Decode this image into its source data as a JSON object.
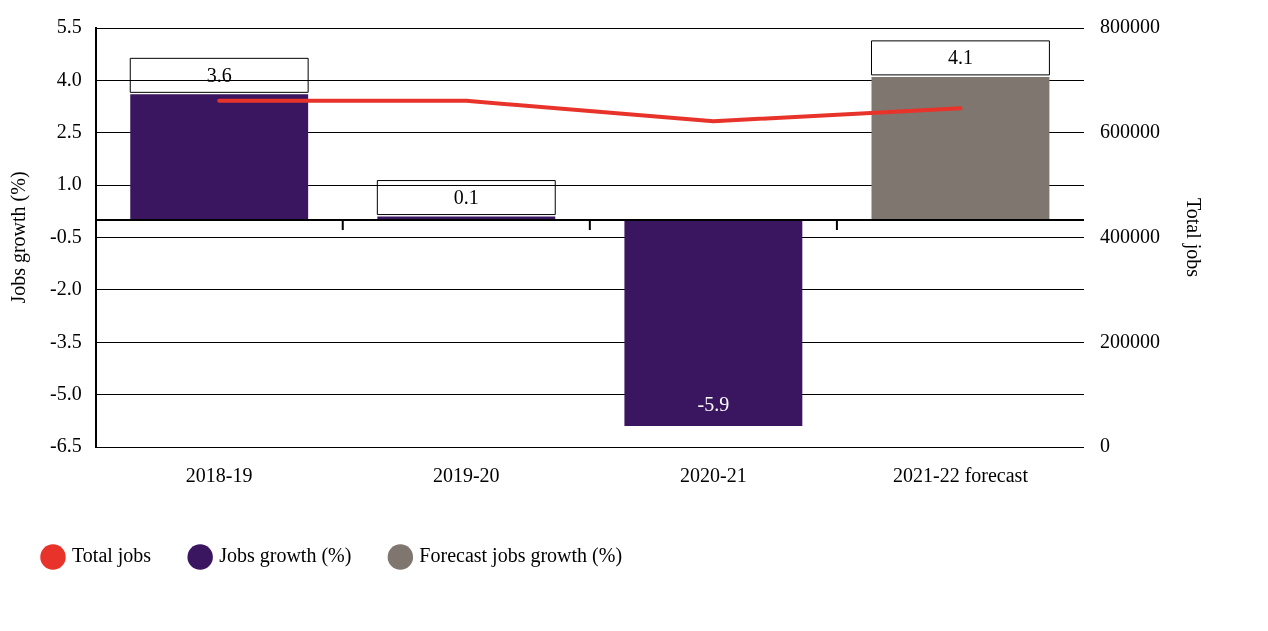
{
  "chart_data": {
    "type": "bar",
    "ylabel": "Jobs growth (%)",
    "y2label": "Total jobs",
    "categories": [
      "2018-19",
      "2019-20",
      "2020-21",
      "2021-22 forecast"
    ],
    "series": [
      {
        "name": "Total jobs",
        "type": "line",
        "axis": "y2",
        "color": "#e8332a",
        "values": [
          661000,
          661000,
          622000,
          647000
        ]
      },
      {
        "name": "Jobs growth (%)",
        "color": "#3b1660",
        "values": [
          3.6,
          0.1,
          -5.9,
          null
        ],
        "value_labels": [
          "3.6",
          "0.1",
          "-5.9",
          null
        ]
      },
      {
        "name": "Forecast jobs growth (%)",
        "color": "#7f7670",
        "values": [
          null,
          null,
          null,
          4.1
        ],
        "value_labels": [
          null,
          null,
          null,
          "4.1"
        ]
      }
    ],
    "stacked": true,
    "grid": "y",
    "legend": "bottom",
    "marker": "none",
    "ylim": [
      -6.5,
      5.5
    ],
    "yticks": [
      {
        "value": -6.5,
        "label": "-6.5"
      },
      {
        "value": -5,
        "label": "-5.0"
      },
      {
        "value": -3.5,
        "label": "-3.5"
      },
      {
        "value": -2,
        "label": "-2.0"
      },
      {
        "value": -0.5,
        "label": "-0.5"
      },
      {
        "value": 1,
        "label": "1.0"
      },
      {
        "value": 2.5,
        "label": "2.5"
      },
      {
        "value": 4,
        "label": "4.0"
      },
      {
        "value": 5.5,
        "label": "5.5"
      }
    ],
    "y2lim": [
      0,
      800000
    ],
    "y2ticks": [
      0,
      200000,
      400000,
      600000,
      800000
    ]
  }
}
